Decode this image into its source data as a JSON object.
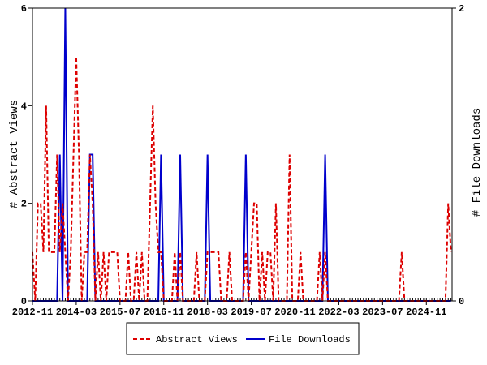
{
  "chart_data": {
    "type": "line",
    "title": "",
    "xlabel": "",
    "ylabel": "# Abstract Views",
    "y2label": "# File Downloads",
    "ylim": [
      0,
      6
    ],
    "y2lim": [
      0,
      2
    ],
    "yticks": [
      "0",
      "2",
      "4",
      "6"
    ],
    "y2ticks": [
      "0",
      "2"
    ],
    "xticks": [
      "2012-11",
      "2014-03",
      "2015-07",
      "2016-11",
      "2018-03",
      "2019-07",
      "2020-11",
      "2022-03",
      "2023-07",
      "2024-11"
    ],
    "x_first": "2012-11",
    "grid": false,
    "legend": "bottom",
    "series": [
      {
        "name": "Abstract Views",
        "axis": "left",
        "color": "#dd0000",
        "style": "dashed",
        "values": [
          1,
          0,
          2,
          2,
          1,
          4,
          1,
          1,
          1,
          3,
          1,
          2,
          1,
          0,
          1,
          3,
          5,
          3,
          0,
          1,
          1,
          3,
          2,
          0,
          1,
          0,
          1,
          0,
          1,
          1,
          1,
          1,
          0,
          0,
          0,
          1,
          0,
          0,
          1,
          0,
          1,
          0,
          0,
          2,
          4,
          2,
          1,
          1,
          0,
          0,
          0,
          0,
          1,
          0,
          1,
          0,
          0,
          0,
          0,
          0,
          1,
          0,
          0,
          0,
          1,
          1,
          1,
          1,
          1,
          0,
          0,
          0,
          1,
          0,
          0,
          0,
          0,
          0,
          1,
          0,
          1,
          2,
          2,
          0,
          1,
          0,
          1,
          1,
          0,
          2,
          0,
          0,
          0,
          0,
          3,
          0,
          0,
          0,
          1,
          0,
          0,
          0,
          0,
          0,
          0,
          1,
          0,
          1,
          0,
          0,
          0,
          0,
          0,
          0,
          0,
          0,
          0,
          0,
          0,
          0,
          0,
          0,
          0,
          0,
          0,
          0,
          0,
          0,
          0,
          0,
          0,
          0,
          0,
          0,
          0,
          1,
          0,
          0,
          0,
          0,
          0,
          0,
          0,
          0,
          0,
          0,
          0,
          0,
          0,
          0,
          0,
          0,
          2,
          1
        ]
      },
      {
        "name": "File Downloads",
        "axis": "right",
        "color": "#0000cc",
        "style": "solid",
        "values": [
          0,
          0,
          0,
          0,
          0,
          0,
          0,
          0,
          0,
          0,
          1,
          0,
          2,
          0,
          0,
          0,
          0,
          0,
          0,
          0,
          0,
          1,
          1,
          0,
          0,
          0,
          0,
          0,
          0,
          0,
          0,
          0,
          0,
          0,
          0,
          0,
          0,
          0,
          0,
          0,
          0,
          0,
          0,
          0,
          0,
          0,
          0,
          1,
          0,
          0,
          0,
          0,
          0,
          0,
          1,
          0,
          0,
          0,
          0,
          0,
          0,
          0,
          0,
          0,
          1,
          0,
          0,
          0,
          0,
          0,
          0,
          0,
          0,
          0,
          0,
          0,
          0,
          0,
          1,
          0,
          0,
          0,
          0,
          0,
          0,
          0,
          0,
          0,
          0,
          0,
          0,
          0,
          0,
          0,
          0,
          0,
          0,
          0,
          0,
          0,
          0,
          0,
          0,
          0,
          0,
          0,
          0,
          1,
          0,
          0,
          0,
          0,
          0,
          0,
          0,
          0,
          0,
          0,
          0,
          0,
          0,
          0,
          0,
          0,
          0,
          0,
          0,
          0,
          0,
          0,
          0,
          0,
          0,
          0,
          0,
          0,
          0,
          0,
          0,
          0,
          0,
          0,
          0,
          0,
          0,
          0,
          0,
          0,
          0,
          0,
          0,
          0,
          0,
          0
        ]
      }
    ]
  }
}
